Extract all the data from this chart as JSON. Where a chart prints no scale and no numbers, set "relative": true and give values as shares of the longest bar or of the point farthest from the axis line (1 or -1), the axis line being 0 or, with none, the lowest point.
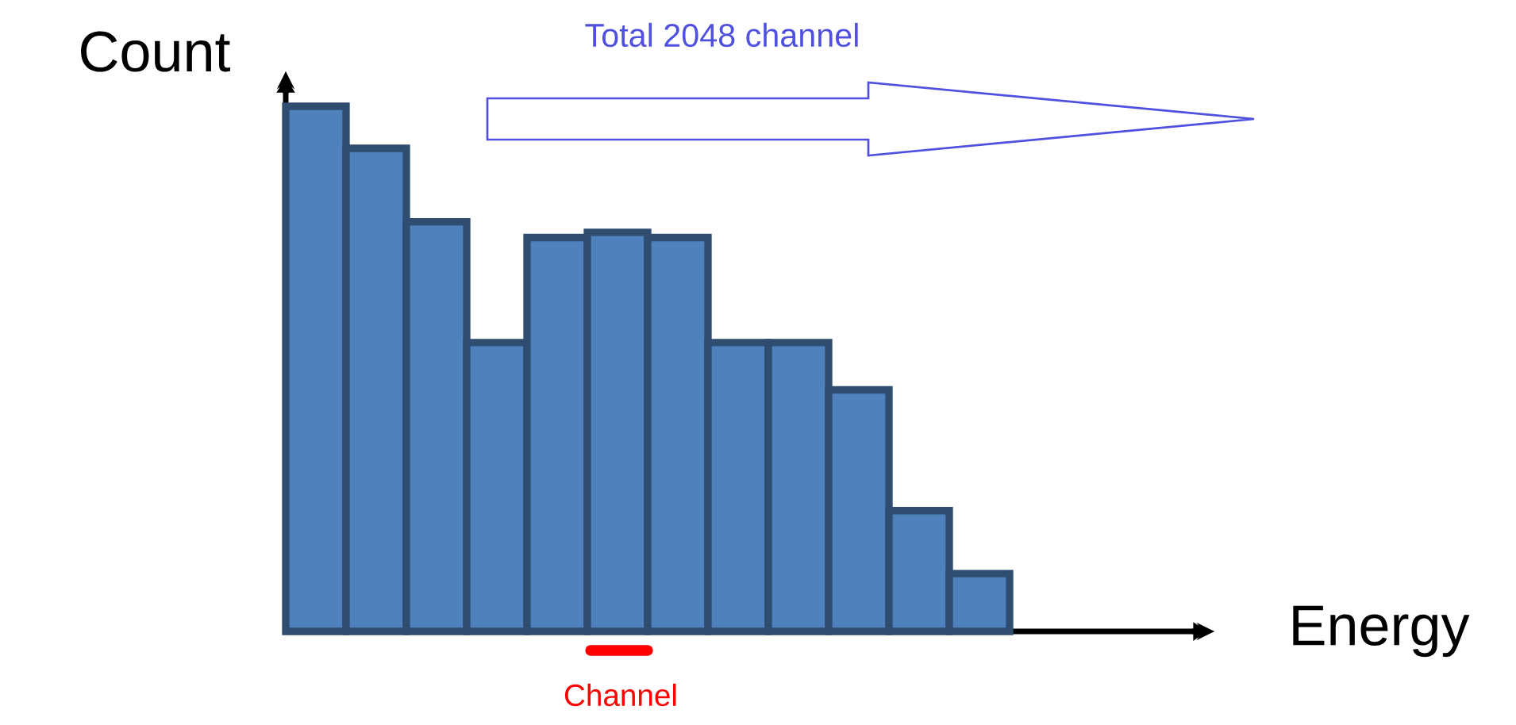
{
  "chart_data": {
    "type": "bar",
    "xlabel": "Energy",
    "ylabel": "Count",
    "categories": [
      null,
      null,
      null,
      null,
      null,
      null,
      null,
      null,
      null,
      null,
      null,
      null
    ],
    "values": [
      1,
      0.92,
      0.78,
      0.55,
      0.75,
      0.76,
      0.75,
      0.55,
      0.55,
      0.46,
      0.23,
      0.11
    ],
    "color": "#4f81bd",
    "relative": true,
    "annotations": [
      "Total 2048 channel",
      "Channel"
    ]
  }
}
